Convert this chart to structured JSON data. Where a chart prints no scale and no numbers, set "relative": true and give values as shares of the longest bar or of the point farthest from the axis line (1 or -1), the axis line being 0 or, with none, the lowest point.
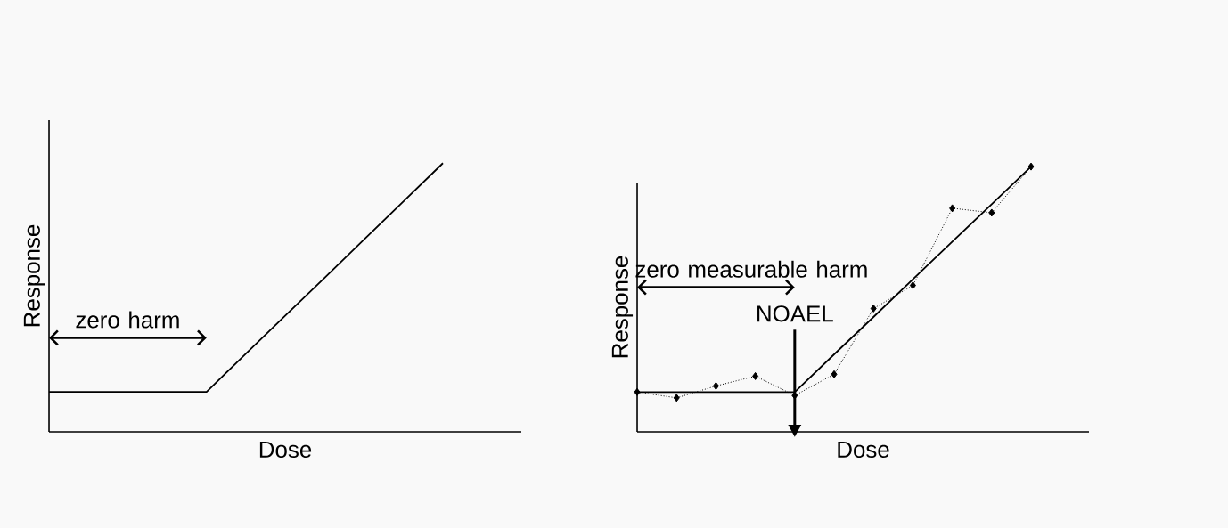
{
  "chart_data": [
    {
      "type": "line",
      "relative": true,
      "xlabel": "Dose",
      "ylabel": "Response",
      "categories": [
        null,
        null,
        null,
        null,
        null,
        null,
        null,
        null,
        null,
        null,
        null
      ],
      "tick_labels": false,
      "series": [
        {
          "color": "#000000",
          "values": [
            0.149,
            0.149,
            0.149,
            0.149,
            0.149,
            0.291,
            0.433,
            0.574,
            0.716,
            0.858,
            1.0
          ],
          "marker": "none",
          "line_style": "solid"
        }
      ],
      "annotations": [
        "zero harm"
      ]
    },
    {
      "type": "line",
      "relative": true,
      "xlabel": "Dose",
      "ylabel": "Response",
      "categories": [
        null,
        null,
        null,
        null,
        null,
        null,
        null,
        null,
        null,
        null,
        null
      ],
      "tick_labels": false,
      "series": [
        {
          "color": "#000000",
          "values": [
            0.15,
            0.128,
            0.173,
            0.21,
            0.137,
            0.217,
            0.465,
            0.552,
            0.843,
            0.826,
            1.0
          ],
          "marker": "diamond",
          "line_style": "dotted"
        },
        {
          "color": "#000000",
          "values": [
            0.15,
            0.15,
            0.15,
            0.15,
            0.15,
            0.292,
            0.433,
            0.575,
            0.717,
            0.858,
            1.0
          ],
          "marker": "none",
          "line_style": "solid"
        }
      ],
      "annotations": [
        "zero measurable harm",
        "NOAEL"
      ]
    }
  ]
}
